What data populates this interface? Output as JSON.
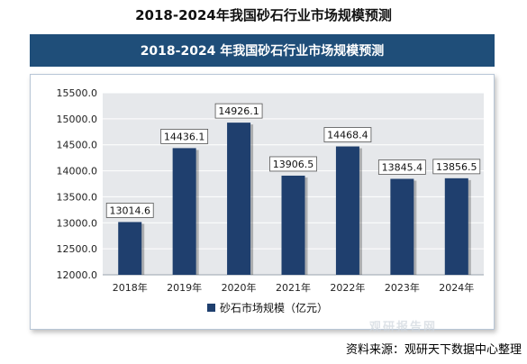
{
  "page": {
    "title": "2018-2024年我国砂石行业市场规模预测",
    "banner_title": "2018-2024 年我国砂石行业市场规模预测",
    "source": "资料来源：观研天下数据中心整理",
    "watermark": "观研报告网"
  },
  "chart_data": {
    "type": "bar",
    "title": "",
    "xlabel": "",
    "ylabel": "",
    "categories": [
      "2018年",
      "2019年",
      "2020年",
      "2021年",
      "2022年",
      "2023年",
      "2024年"
    ],
    "series": [
      {
        "name": "砂石市场规模（亿元）",
        "values": [
          13014.6,
          14436.1,
          14926.1,
          13906.5,
          14468.4,
          13845.4,
          13856.5
        ],
        "labels": [
          "13014.6",
          "14436.1",
          "14926.1",
          "13906.5",
          "14468.4",
          "13845.4",
          "13856.5"
        ],
        "color": "#1f3f6e"
      }
    ],
    "ylim": [
      12000,
      15500
    ],
    "yticks": [
      "12000.0",
      "12500.0",
      "13000.0",
      "13500.0",
      "14000.0",
      "14500.0",
      "15000.0",
      "15500.0"
    ],
    "grid": true,
    "legend_position": "bottom",
    "plot_background": "#e6e8eb",
    "bar_color": "#1f3f6e"
  }
}
